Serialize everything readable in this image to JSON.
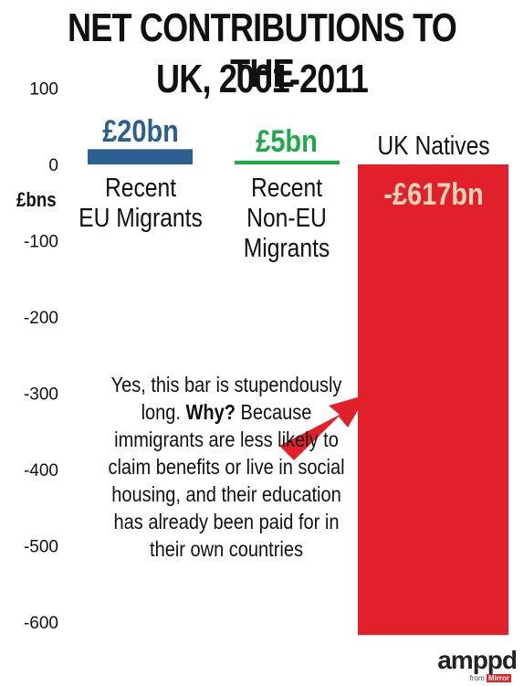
{
  "title_lines": [
    "NET CONTRIBUTIONS TO THE",
    "UK, 2001-2011"
  ],
  "chart_data": {
    "type": "bar",
    "title": "NET CONTRIBUTIONS TO THE UK, 2001-2011",
    "ylabel": "£bns",
    "ylim": [
      -617,
      100
    ],
    "yticks": [
      100,
      0,
      -100,
      -200,
      -300,
      -400,
      -500,
      -600
    ],
    "categories": [
      "Recent EU Migrants",
      "Recent Non-EU Migrants",
      "UK Natives"
    ],
    "category_lines": [
      [
        "Recent",
        "EU Migrants"
      ],
      [
        "Recent",
        "Non-EU",
        "Migrants"
      ],
      [
        "UK Natives"
      ]
    ],
    "values": [
      20,
      5,
      -617
    ],
    "value_labels": [
      "£20bn",
      "£5bn",
      "-£617bn"
    ],
    "colors": [
      "#2b5f8f",
      "#1faa4a",
      "#e2202a"
    ],
    "value_label_colors": [
      "#2b5f8f",
      "#1faa4a",
      "#f8d5b8"
    ],
    "annotation": {
      "bold_prefix": "Why?",
      "text_before": "Yes, this bar is stupendously long.",
      "text_after": "Because immigrants are less likely to claim benefits or live in social housing, and their education has already been paid for in their own countries"
    },
    "arrow_color": "#e2202a"
  },
  "logo": {
    "main": "amppd",
    "sub_prefix": "from",
    "sub_brand": "Mirror"
  }
}
